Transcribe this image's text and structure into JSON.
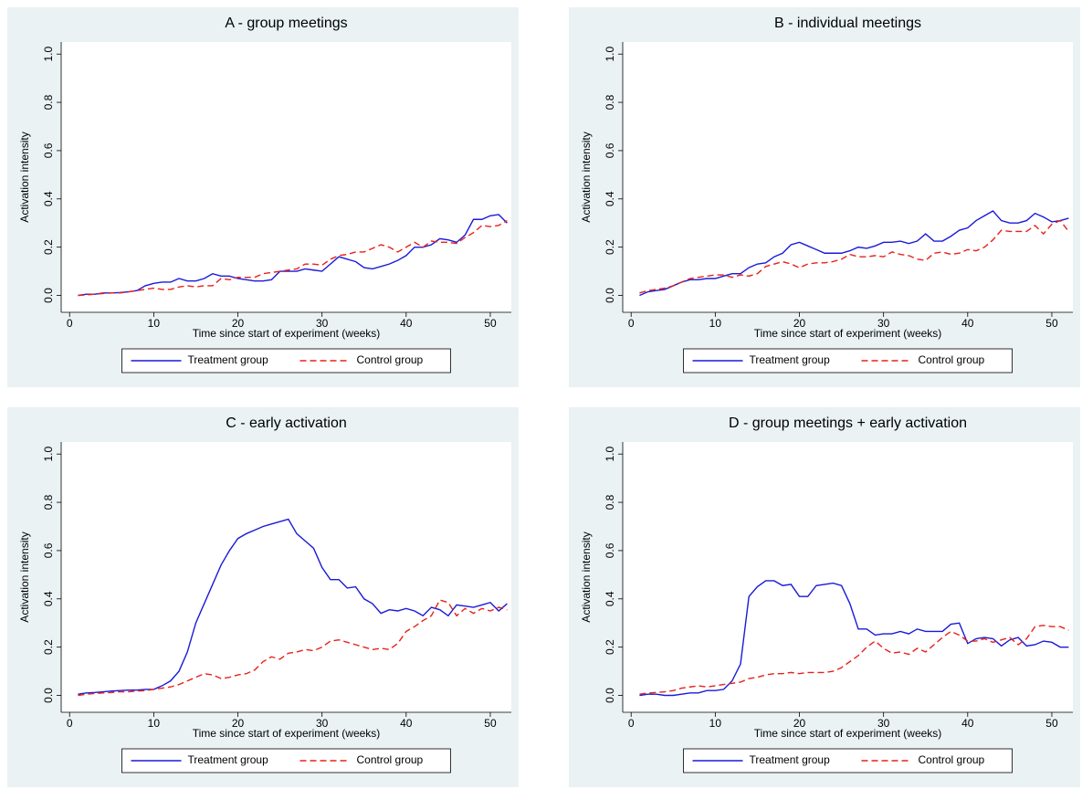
{
  "chart_data": [
    {
      "type": "line",
      "title": "A - group meetings",
      "x_label": "Time since start of experiment (weeks)",
      "y_label": "Activation intensity",
      "x": [
        1,
        2,
        3,
        4,
        5,
        6,
        7,
        8,
        9,
        10,
        11,
        12,
        13,
        14,
        15,
        16,
        17,
        18,
        19,
        20,
        21,
        22,
        23,
        24,
        25,
        26,
        27,
        28,
        29,
        30,
        31,
        32,
        33,
        34,
        35,
        36,
        37,
        38,
        39,
        40,
        41,
        42,
        43,
        44,
        45,
        46,
        47,
        48,
        49,
        50,
        51,
        52
      ],
      "series": [
        {
          "name": "Treatment group",
          "color": "#1a1ad8",
          "dash": "solid",
          "values": [
            0,
            0.005,
            0.005,
            0.01,
            0.01,
            0.012,
            0.015,
            0.02,
            0.04,
            0.05,
            0.055,
            0.055,
            0.07,
            0.06,
            0.06,
            0.07,
            0.09,
            0.08,
            0.08,
            0.07,
            0.065,
            0.06,
            0.06,
            0.065,
            0.1,
            0.1,
            0.1,
            0.11,
            0.105,
            0.1,
            0.13,
            0.16,
            0.15,
            0.14,
            0.115,
            0.11,
            0.12,
            0.13,
            0.145,
            0.165,
            0.2,
            0.2,
            0.21,
            0.235,
            0.23,
            0.22,
            0.25,
            0.315,
            0.315,
            0.33,
            0.335,
            0.3
          ]
        },
        {
          "name": "Control group",
          "color": "#e8211b",
          "dash": "dashed",
          "values": [
            0,
            0.002,
            0.005,
            0.008,
            0.01,
            0.01,
            0.015,
            0.02,
            0.025,
            0.03,
            0.025,
            0.025,
            0.035,
            0.04,
            0.035,
            0.04,
            0.04,
            0.07,
            0.065,
            0.075,
            0.075,
            0.075,
            0.09,
            0.095,
            0.1,
            0.105,
            0.11,
            0.13,
            0.13,
            0.125,
            0.15,
            0.165,
            0.17,
            0.18,
            0.18,
            0.195,
            0.21,
            0.2,
            0.18,
            0.2,
            0.22,
            0.2,
            0.225,
            0.22,
            0.22,
            0.215,
            0.24,
            0.26,
            0.29,
            0.285,
            0.29,
            0.31
          ]
        }
      ],
      "xlim": [
        -1,
        52.5
      ],
      "ylim": [
        -0.07,
        1.05
      ],
      "xticks": [
        0,
        10,
        20,
        30,
        40,
        50
      ],
      "yticks": [
        {
          "value": 0,
          "label": "0.0"
        },
        {
          "value": 0.2,
          "label": "0.2"
        },
        {
          "value": 0.4,
          "label": "0.4"
        },
        {
          "value": 0.6,
          "label": "0.6"
        },
        {
          "value": 0.8,
          "label": "0.8"
        },
        {
          "value": 1,
          "label": "1.0"
        }
      ],
      "grid": false,
      "legend": "bottom"
    },
    {
      "type": "line",
      "title": "B - individual meetings",
      "x_label": "Time since start of experiment (weeks)",
      "y_label": "Activation intensity",
      "x": [
        1,
        2,
        3,
        4,
        5,
        6,
        7,
        8,
        9,
        10,
        11,
        12,
        13,
        14,
        15,
        16,
        17,
        18,
        19,
        20,
        21,
        22,
        23,
        24,
        25,
        26,
        27,
        28,
        29,
        30,
        31,
        32,
        33,
        34,
        35,
        36,
        37,
        38,
        39,
        40,
        41,
        42,
        43,
        44,
        45,
        46,
        47,
        48,
        49,
        50,
        51,
        52
      ],
      "series": [
        {
          "name": "Treatment group",
          "color": "#1a1ad8",
          "dash": "solid",
          "values": [
            0,
            0.015,
            0.02,
            0.025,
            0.04,
            0.055,
            0.065,
            0.065,
            0.07,
            0.07,
            0.08,
            0.09,
            0.09,
            0.115,
            0.13,
            0.135,
            0.16,
            0.175,
            0.21,
            0.22,
            0.205,
            0.19,
            0.175,
            0.175,
            0.175,
            0.185,
            0.2,
            0.195,
            0.205,
            0.22,
            0.22,
            0.225,
            0.215,
            0.225,
            0.255,
            0.225,
            0.225,
            0.245,
            0.27,
            0.28,
            0.31,
            0.33,
            0.35,
            0.31,
            0.3,
            0.3,
            0.31,
            0.34,
            0.325,
            0.305,
            0.31,
            0.32
          ]
        },
        {
          "name": "Control group",
          "color": "#e8211b",
          "dash": "dashed",
          "values": [
            0.01,
            0.02,
            0.025,
            0.03,
            0.04,
            0.055,
            0.07,
            0.075,
            0.08,
            0.085,
            0.085,
            0.075,
            0.085,
            0.08,
            0.09,
            0.12,
            0.13,
            0.14,
            0.13,
            0.115,
            0.13,
            0.135,
            0.135,
            0.14,
            0.15,
            0.17,
            0.16,
            0.16,
            0.165,
            0.16,
            0.18,
            0.17,
            0.165,
            0.15,
            0.145,
            0.175,
            0.18,
            0.17,
            0.175,
            0.19,
            0.185,
            0.2,
            0.23,
            0.27,
            0.265,
            0.265,
            0.265,
            0.29,
            0.255,
            0.295,
            0.31,
            0.265
          ]
        }
      ],
      "xlim": [
        -1,
        52.5
      ],
      "ylim": [
        -0.07,
        1.05
      ],
      "xticks": [
        0,
        10,
        20,
        30,
        40,
        50
      ],
      "yticks": [
        {
          "value": 0,
          "label": "0.0"
        },
        {
          "value": 0.2,
          "label": "0.2"
        },
        {
          "value": 0.4,
          "label": "0.4"
        },
        {
          "value": 0.6,
          "label": "0.6"
        },
        {
          "value": 0.8,
          "label": "0.8"
        },
        {
          "value": 1,
          "label": "1.0"
        }
      ],
      "grid": false,
      "legend": "bottom"
    },
    {
      "type": "line",
      "title": "C - early activation",
      "x_label": "Time since start of experiment (weeks)",
      "y_label": "Activation intensity",
      "x": [
        1,
        2,
        3,
        4,
        5,
        6,
        7,
        8,
        9,
        10,
        11,
        12,
        13,
        14,
        15,
        16,
        17,
        18,
        19,
        20,
        21,
        22,
        23,
        24,
        25,
        26,
        27,
        28,
        29,
        30,
        31,
        32,
        33,
        34,
        35,
        36,
        37,
        38,
        39,
        40,
        41,
        42,
        43,
        44,
        45,
        46,
        47,
        48,
        49,
        50,
        51,
        52
      ],
      "series": [
        {
          "name": "Treatment group",
          "color": "#1a1ad8",
          "dash": "solid",
          "values": [
            0.005,
            0.01,
            0.012,
            0.015,
            0.018,
            0.02,
            0.022,
            0.022,
            0.025,
            0.025,
            0.04,
            0.06,
            0.1,
            0.18,
            0.3,
            0.38,
            0.46,
            0.54,
            0.6,
            0.65,
            0.67,
            0.685,
            0.7,
            0.71,
            0.72,
            0.73,
            0.67,
            0.64,
            0.61,
            0.53,
            0.48,
            0.48,
            0.445,
            0.45,
            0.4,
            0.38,
            0.34,
            0.355,
            0.35,
            0.36,
            0.35,
            0.33,
            0.365,
            0.355,
            0.33,
            0.375,
            0.37,
            0.365,
            0.375,
            0.385,
            0.35,
            0.38
          ]
        },
        {
          "name": "Control group",
          "color": "#e8211b",
          "dash": "dashed",
          "values": [
            0,
            0.005,
            0.008,
            0.01,
            0.012,
            0.015,
            0.015,
            0.018,
            0.02,
            0.025,
            0.03,
            0.035,
            0.045,
            0.06,
            0.075,
            0.09,
            0.085,
            0.07,
            0.075,
            0.085,
            0.09,
            0.105,
            0.14,
            0.16,
            0.15,
            0.175,
            0.18,
            0.19,
            0.185,
            0.2,
            0.225,
            0.23,
            0.22,
            0.21,
            0.2,
            0.19,
            0.195,
            0.19,
            0.215,
            0.265,
            0.285,
            0.31,
            0.33,
            0.395,
            0.385,
            0.33,
            0.36,
            0.34,
            0.36,
            0.35,
            0.365,
            0.355
          ]
        }
      ],
      "xlim": [
        -1,
        52.5
      ],
      "ylim": [
        -0.07,
        1.05
      ],
      "xticks": [
        0,
        10,
        20,
        30,
        40,
        50
      ],
      "yticks": [
        {
          "value": 0,
          "label": "0.0"
        },
        {
          "value": 0.2,
          "label": "0.2"
        },
        {
          "value": 0.4,
          "label": "0.4"
        },
        {
          "value": 0.6,
          "label": "0.6"
        },
        {
          "value": 0.8,
          "label": "0.8"
        },
        {
          "value": 1,
          "label": "1.0"
        }
      ],
      "grid": false,
      "legend": "bottom"
    },
    {
      "type": "line",
      "title": "D - group meetings + early activation",
      "x_label": "Time since start of experiment (weeks)",
      "y_label": "Activation intensity",
      "x": [
        1,
        2,
        3,
        4,
        5,
        6,
        7,
        8,
        9,
        10,
        11,
        12,
        13,
        14,
        15,
        16,
        17,
        18,
        19,
        20,
        21,
        22,
        23,
        24,
        25,
        26,
        27,
        28,
        29,
        30,
        31,
        32,
        33,
        34,
        35,
        36,
        37,
        38,
        39,
        40,
        41,
        42,
        43,
        44,
        45,
        46,
        47,
        48,
        49,
        50,
        51,
        52
      ],
      "series": [
        {
          "name": "Treatment group",
          "color": "#1a1ad8",
          "dash": "solid",
          "values": [
            0,
            0.005,
            0.005,
            0,
            0,
            0.005,
            0.01,
            0.01,
            0.02,
            0.02,
            0.025,
            0.06,
            0.13,
            0.41,
            0.45,
            0.475,
            0.475,
            0.455,
            0.46,
            0.41,
            0.41,
            0.455,
            0.46,
            0.465,
            0.455,
            0.38,
            0.275,
            0.275,
            0.25,
            0.255,
            0.255,
            0.265,
            0.255,
            0.275,
            0.265,
            0.265,
            0.265,
            0.295,
            0.3,
            0.215,
            0.235,
            0.24,
            0.235,
            0.205,
            0.23,
            0.24,
            0.205,
            0.21,
            0.225,
            0.22,
            0.2,
            0.2
          ]
        },
        {
          "name": "Control group",
          "color": "#e8211b",
          "dash": "dashed",
          "values": [
            0.005,
            0.01,
            0.012,
            0.015,
            0.02,
            0.03,
            0.035,
            0.04,
            0.035,
            0.04,
            0.045,
            0.05,
            0.055,
            0.07,
            0.075,
            0.085,
            0.09,
            0.09,
            0.095,
            0.09,
            0.095,
            0.095,
            0.095,
            0.1,
            0.115,
            0.14,
            0.165,
            0.2,
            0.225,
            0.195,
            0.175,
            0.18,
            0.17,
            0.195,
            0.18,
            0.21,
            0.24,
            0.265,
            0.25,
            0.225,
            0.225,
            0.235,
            0.22,
            0.23,
            0.24,
            0.21,
            0.235,
            0.285,
            0.29,
            0.285,
            0.285,
            0.27
          ]
        }
      ],
      "xlim": [
        -1,
        52.5
      ],
      "ylim": [
        -0.07,
        1.05
      ],
      "xticks": [
        0,
        10,
        20,
        30,
        40,
        50
      ],
      "yticks": [
        {
          "value": 0,
          "label": "0.0"
        },
        {
          "value": 0.2,
          "label": "0.2"
        },
        {
          "value": 0.4,
          "label": "0.4"
        },
        {
          "value": 0.6,
          "label": "0.6"
        },
        {
          "value": 0.8,
          "label": "0.8"
        },
        {
          "value": 1,
          "label": "1.0"
        }
      ],
      "grid": false,
      "legend": "bottom"
    }
  ]
}
